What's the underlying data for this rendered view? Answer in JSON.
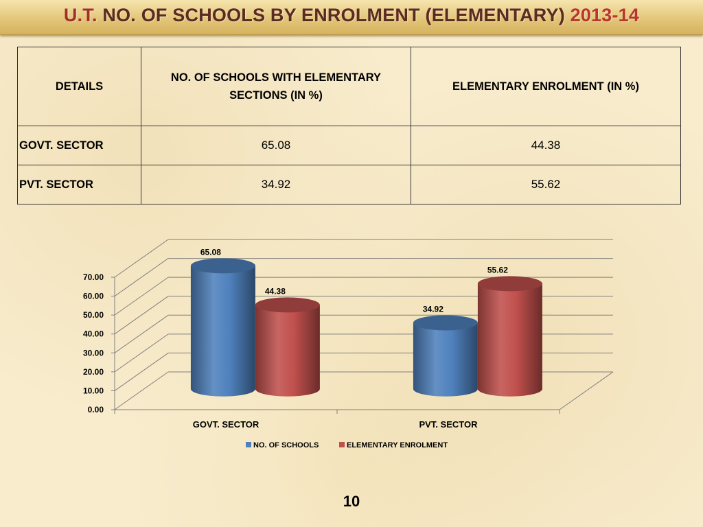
{
  "slide": {
    "title_prefix": "U.T.",
    "title_main": "NO. OF SCHOOLS BY ENROLMENT (ELEMENTARY)",
    "title_year": "2013-14",
    "page_number": "10"
  },
  "table": {
    "headers": [
      "DETAILS",
      "NO. OF SCHOOLS WITH ELEMENTARY SECTIONS (IN %)",
      "ELEMENTARY ENROLMENT (IN %)"
    ],
    "rows": [
      [
        "GOVT. SECTOR",
        "65.08",
        "44.38"
      ],
      [
        "PVT. SECTOR",
        "34.92",
        "55.62"
      ]
    ]
  },
  "colors": {
    "schools": "#4f81bd",
    "enrolment": "#c0504d",
    "title_prefix": "#a22f2a",
    "title_main": "#5b2a21",
    "title_year": "#b8362c"
  },
  "chart_data": {
    "type": "bar",
    "style": "3d-cylinder",
    "categories": [
      "GOVT. SECTOR",
      "PVT. SECTOR"
    ],
    "series": [
      {
        "name": "NO. OF SCHOOLS",
        "values": [
          65.08,
          34.92
        ]
      },
      {
        "name": "ELEMENTARY ENROLMENT",
        "values": [
          44.38,
          55.62
        ]
      }
    ],
    "value_labels": [
      "65.08",
      "44.38",
      "34.92",
      "55.62"
    ],
    "y_ticks": [
      "0.00",
      "10.00",
      "20.00",
      "30.00",
      "40.00",
      "50.00",
      "60.00",
      "70.00"
    ],
    "ylim": [
      0,
      70
    ],
    "grid": true,
    "legend": "bottom"
  }
}
